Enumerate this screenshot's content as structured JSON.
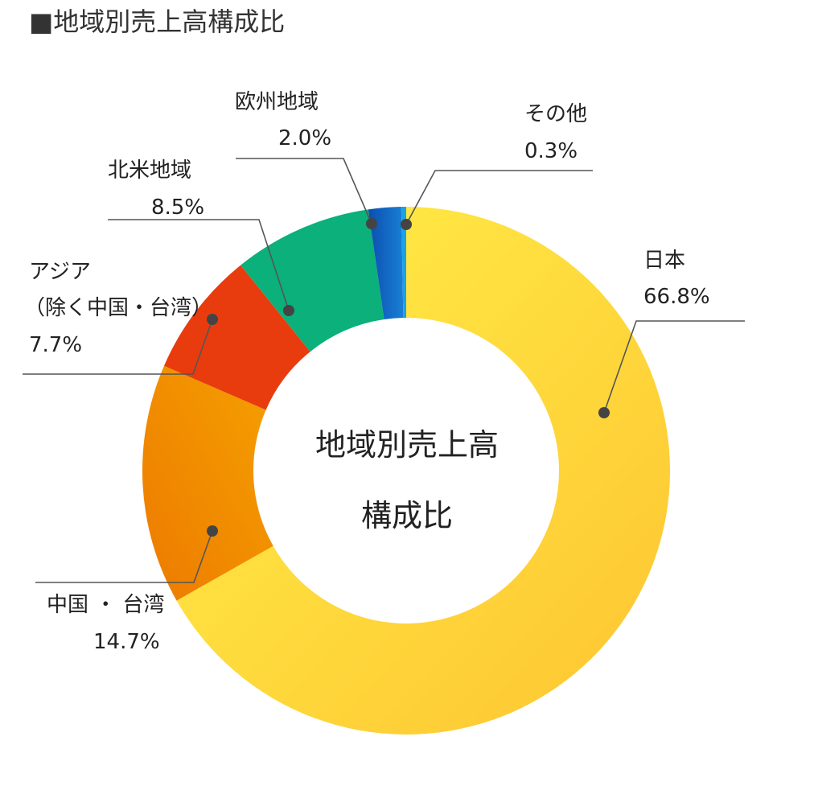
{
  "chart_data": {
    "type": "pie",
    "title": "■地域別売上高構成比",
    "center_label": [
      "地域別売上高",
      "構成比"
    ],
    "slices": [
      {
        "name": "日本",
        "value": 66.8,
        "value_label": "66.8%",
        "color": "#fed83a"
      },
      {
        "name": "中国・台湾",
        "legend_label": "中国 ・ 台湾",
        "value": 14.7,
        "value_label": "14.7%",
        "color": "#f09000"
      },
      {
        "name": "アジア（除く中国・台湾）",
        "label_lines": [
          "アジア",
          "（除く中国・台湾）"
        ],
        "value": 7.7,
        "value_label": "7.7%",
        "color": "#e83c0e"
      },
      {
        "name": "北米地域",
        "value": 8.5,
        "value_label": "8.5%",
        "color": "#0bb07b"
      },
      {
        "name": "欧州地域",
        "value": 2.0,
        "value_label": "2.0%",
        "color": "#0a63c0"
      },
      {
        "name": "その他",
        "value": 0.3,
        "value_label": "0.3%",
        "color": "#1aa3e8"
      }
    ]
  }
}
